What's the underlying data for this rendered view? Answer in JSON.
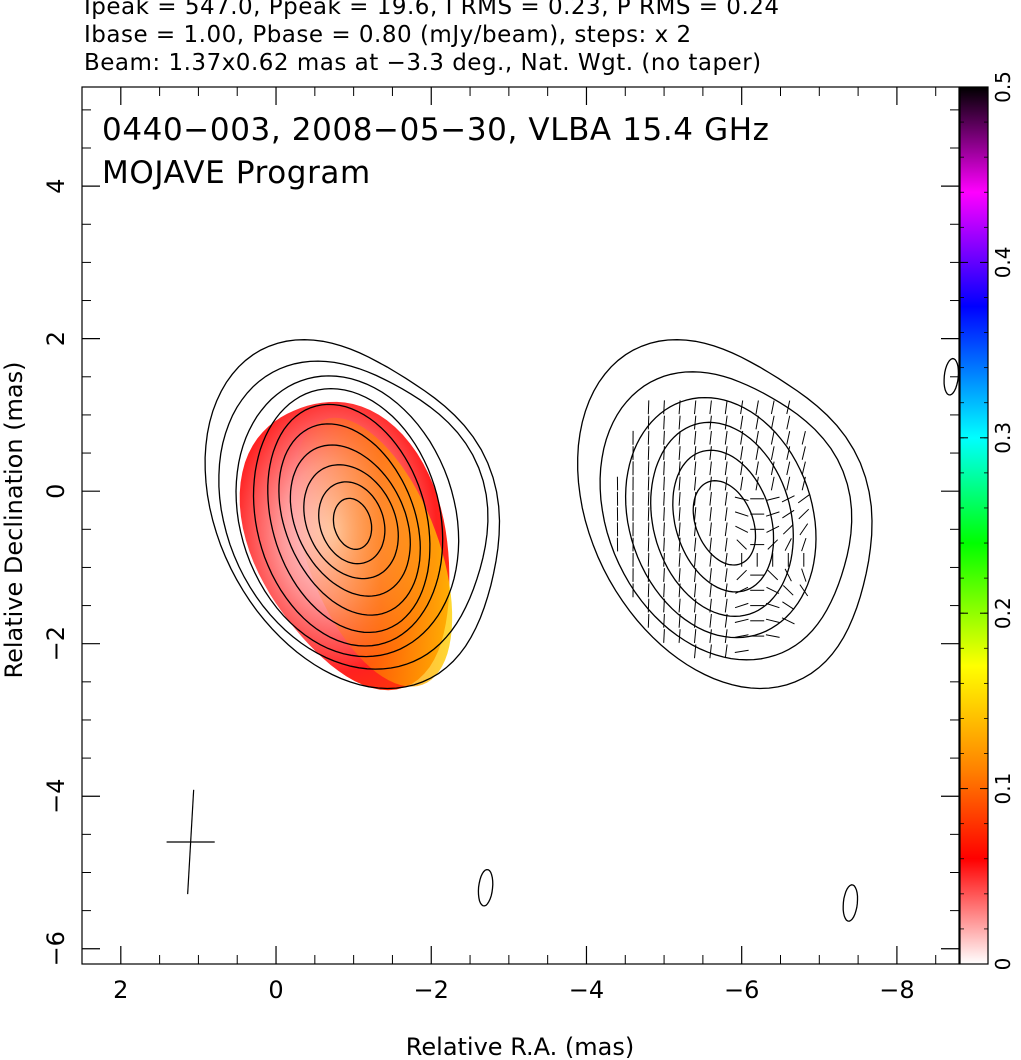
{
  "header": {
    "line1": "Ipeak = 547.0, Ppeak = 19.6, I RMS = 0.23, P RMS = 0.24",
    "line2": "Ibase = 1.00, Pbase = 0.80 (mJy/beam), steps: x 2",
    "line3": "Beam: 1.37x0.62 mas at −3.3 deg., Nat. Wgt. (no taper)"
  },
  "chart_data": {
    "type": "heatmap",
    "title": "0440−003, 2008−05−30, VLBA 15.4 GHz",
    "subtitle": "MOJAVE Program",
    "xlabel": "Relative R.A. (mas)",
    "ylabel": "Relative Declination (mas)",
    "xlim": [
      2.5,
      -8.8
    ],
    "ylim": [
      -6.2,
      5.3
    ],
    "x_ticks": [
      2,
      0,
      -2,
      -4,
      -6,
      -8
    ],
    "x_tick_labels": [
      "2",
      "0",
      "−2",
      "−4",
      "−6",
      "−8"
    ],
    "y_ticks": [
      -6,
      -4,
      -2,
      0,
      2,
      4
    ],
    "y_tick_labels": [
      "−6",
      "−4",
      "−2",
      "0",
      "2",
      "4"
    ],
    "colorbar": {
      "range": [
        0,
        0.5
      ],
      "ticks": [
        0,
        0.1,
        0.2,
        0.3,
        0.4,
        0.5
      ],
      "tick_labels": [
        "0",
        "0.1",
        "0.2",
        "0.3",
        "0.4",
        "0.5"
      ],
      "colors": [
        "#ffffff",
        "#ff0000",
        "#ff8000",
        "#ffff00",
        "#00ff00",
        "#00ffff",
        "#0000ff",
        "#ff00ff",
        "#000000"
      ]
    },
    "panels": [
      {
        "name": "total intensity with fractional polarization",
        "center_x": -0.9,
        "center_y": -0.3
      },
      {
        "name": "polarized intensity with EVPA ticks",
        "center_x": -5.7,
        "center_y": -0.3
      }
    ],
    "beam": {
      "major_mas": 1.37,
      "minor_mas": 0.62,
      "pa_deg": -3.3,
      "x": 1.1,
      "y": -4.6
    },
    "secondary_features": [
      {
        "x": -2.7,
        "y": -5.2
      },
      {
        "x": -7.4,
        "y": -5.4
      },
      {
        "x": -8.7,
        "y": 1.5
      }
    ]
  }
}
